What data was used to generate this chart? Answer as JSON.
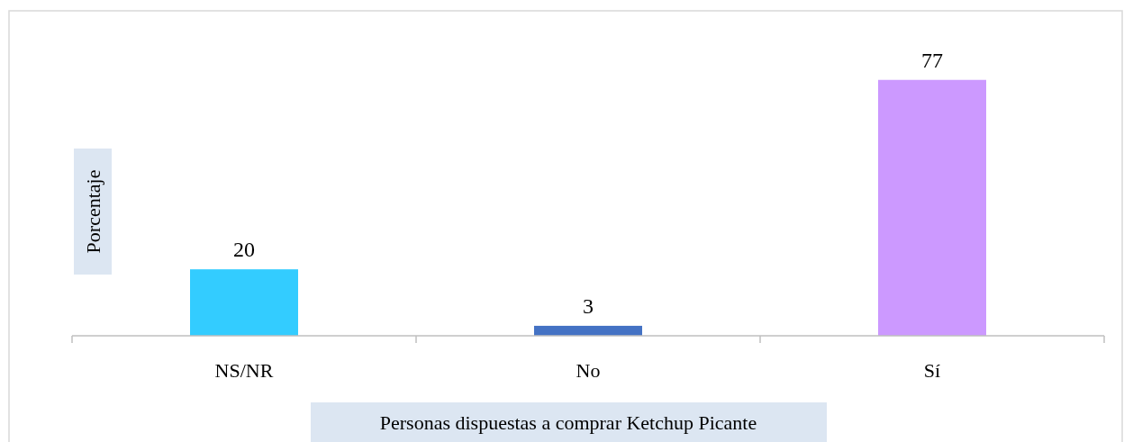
{
  "chart_data": {
    "type": "bar",
    "xlabel": "Personas dispuestas a comprar Ketchup Picante",
    "ylabel": "Porcentaje",
    "categories": [
      "NS/NR",
      "No",
      "Sí"
    ],
    "values": [
      20,
      3,
      77
    ],
    "colors": [
      "#33ccff",
      "#4472c4",
      "#cc99ff"
    ],
    "data_labels": true
  }
}
